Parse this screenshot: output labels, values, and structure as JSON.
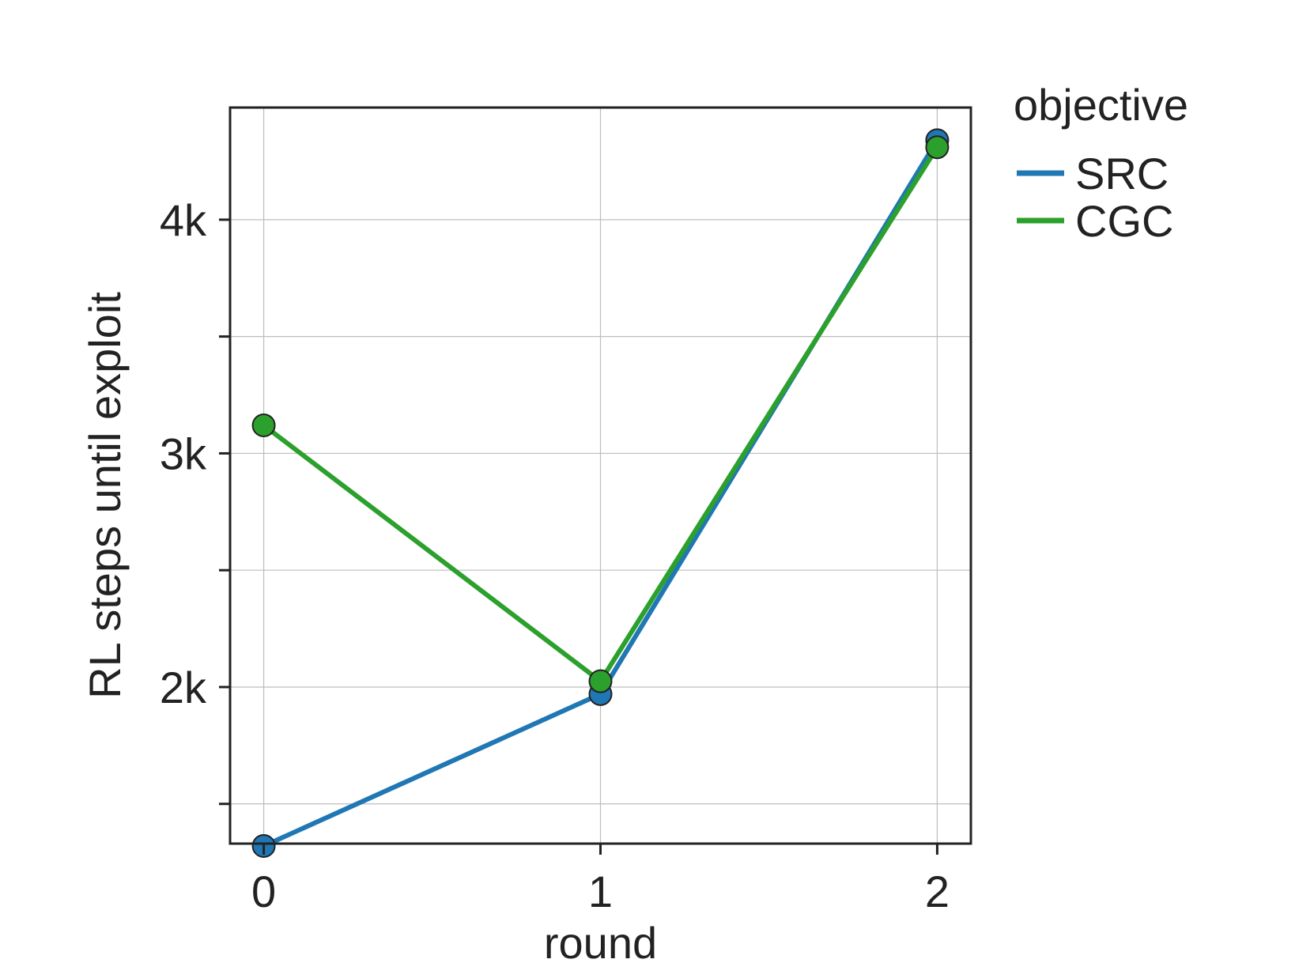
{
  "chart_data": {
    "type": "line",
    "x": [
      0,
      1,
      2
    ],
    "xticks": [
      "0",
      "1",
      "2"
    ],
    "yticks": [
      {
        "value": 1500,
        "label": ""
      },
      {
        "value": 2000,
        "label": "2k"
      },
      {
        "value": 2500,
        "label": ""
      },
      {
        "value": 3000,
        "label": "3k"
      },
      {
        "value": 3500,
        "label": ""
      },
      {
        "value": 4000,
        "label": "4k"
      }
    ],
    "xlabel": "round",
    "ylabel": "RL steps until exploit",
    "xlim": [
      -0.1,
      2.1
    ],
    "ylim": [
      1330,
      4480
    ],
    "grid": true,
    "legend": {
      "title": "objective",
      "placement": "outside-top-right"
    },
    "series": [
      {
        "name": "SRC",
        "color": "#1f77b4",
        "values": [
          1320,
          1970,
          4340
        ]
      },
      {
        "name": "CGC",
        "color": "#2ca02c",
        "values": [
          3120,
          2025,
          4310
        ]
      }
    ]
  }
}
